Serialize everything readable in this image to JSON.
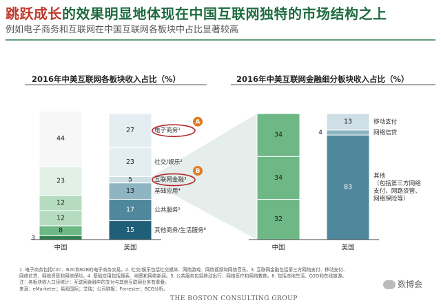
{
  "header": {
    "title_highlight": "跳跃成长",
    "title_rest": "的效果明显地体现在中国互联网独特的市场结构之上",
    "subtitle": "例如电子商务和互联网在中国互联网各板块中占比显著较高"
  },
  "colors": {
    "title_green": "#1f6b3f",
    "title_red": "#c0392b",
    "green_dark": "#2f7f4f",
    "green_mid": "#6db884",
    "green_light": "#b5dcbf",
    "green_pale": "#e2f1e5",
    "white_seg": "#f6f7f6",
    "blue_dark": "#1f5f78",
    "blue_mid": "#4f879c",
    "blue_light": "#8fb4c2",
    "blue_pale": "#cfdfe6",
    "blue_paler": "#e4eef2",
    "badge_orange": "#e07b1f",
    "circle_red": "#b5282d"
  },
  "chart_data": [
    {
      "type": "bar",
      "stacked": true,
      "title": "2016年中美互联网各板块收入占比（%）",
      "categories": [
        "中国",
        "美国"
      ],
      "series": [
        {
          "name": "其他商务/生活服务",
          "values": [
            3,
            15
          ]
        },
        {
          "name": "公共服务",
          "values": [
            8,
            17
          ]
        },
        {
          "name": "基础应用",
          "values": [
            12,
            13
          ]
        },
        {
          "name": "互联网金融",
          "values": [
            12,
            5
          ]
        },
        {
          "name": "社交/娱乐",
          "values": [
            23,
            23
          ]
        },
        {
          "name": "电子商务",
          "values": [
            44,
            27
          ]
        }
      ],
      "series_labels": [
        "其他商务/生活服务⁶",
        "公共服务⁵",
        "基础应用⁴",
        "互联网金融³",
        "社交/娱乐²",
        "电子商务¹"
      ],
      "badges": [
        {
          "letter": "A",
          "series": "电子商务"
        },
        {
          "letter": "B",
          "series": "互联网金融"
        }
      ],
      "ylim": [
        0,
        100
      ]
    },
    {
      "type": "bar",
      "stacked": true,
      "title": "2016年中美互联网金融细分板块收入占比（%）",
      "categories": [
        "中国",
        "美国"
      ],
      "series": [
        {
          "name": "其他",
          "values": [
            32,
            83
          ]
        },
        {
          "name": "网络信贷",
          "values": [
            34,
            4
          ]
        },
        {
          "name": "移动支付",
          "values": [
            34,
            13
          ]
        }
      ],
      "series_labels": [
        "其他\n（包括第三方网络\n支付、网路资管、\n网络保险等）",
        "网络信贷",
        "移动支付"
      ],
      "ylim": [
        0,
        100
      ]
    }
  ],
  "footnotes": [
    "1. 电子商务包括C2C、B2C和B2B的电子商务交易。2. 社交/娱乐包括社交媒体、网络游戏、网络视频和网络音乐。3. 互联网金融包括第三方网络支付、移动支付、",
    "网络信贷、网络资管和网络保险。4. 基础应用包括搜索、地图和网络新闻。5. 公共服务包括移动出行、网络医疗和网络教育。6. 包括本地生活、O2O和在线旅游。",
    "注：各板块收入口径统计：互联网金融中的支付与其他互联网业务有重叠。",
    "来源：eMarketer；易观国际；艾瑞；公司财报；Forrester；BCG分析。"
  ],
  "footer": {
    "logo": "THE BOSTON CONSULTING GROUP",
    "watermark": "数博会"
  }
}
